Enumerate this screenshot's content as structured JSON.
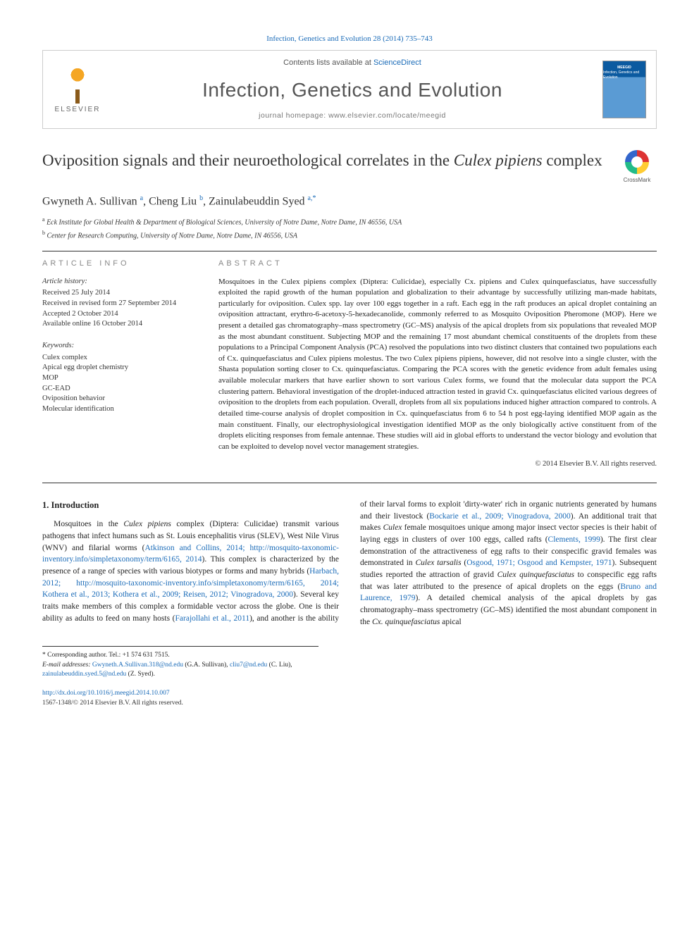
{
  "citation": "Infection, Genetics and Evolution 28 (2014) 735–743",
  "masthead": {
    "contents_prefix": "Contents lists available at ",
    "contents_link": "ScienceDirect",
    "journal": "Infection, Genetics and Evolution",
    "homepage": "journal homepage: www.elsevier.com/locate/meegid",
    "publisher": "ELSEVIER",
    "cover_line1": "MEEGID",
    "cover_line2": "Infection, Genetics and Evolution"
  },
  "title_plain": "Oviposition signals and their neuroethological correlates in the ",
  "title_ital": "Culex pipiens",
  "title_tail": " complex",
  "crossmark_label": "CrossMark",
  "authors_html": "Gwyneth A. Sullivan",
  "author1_sup": "a",
  "author2": "Cheng Liu",
  "author2_sup": "b",
  "author3": "Zainulabeuddin Syed",
  "author3_sup": "a,*",
  "affiliations": {
    "a": "Eck Institute for Global Health & Department of Biological Sciences, University of Notre Dame, Notre Dame, IN 46556, USA",
    "b": "Center for Research Computing, University of Notre Dame, Notre Dame, IN 46556, USA"
  },
  "section_labels": {
    "info": "ARTICLE INFO",
    "abstract": "ABSTRACT"
  },
  "history_head": "Article history:",
  "history": [
    "Received 25 July 2014",
    "Received in revised form 27 September 2014",
    "Accepted 2 October 2014",
    "Available online 16 October 2014"
  ],
  "keywords_head": "Keywords:",
  "keywords": [
    "Culex complex",
    "Apical egg droplet chemistry",
    "MOP",
    "GC-EAD",
    "Oviposition behavior",
    "Molecular identification"
  ],
  "abstract": "Mosquitoes in the Culex pipiens complex (Diptera: Culicidae), especially Cx. pipiens and Culex quinquefasciatus, have successfully exploited the rapid growth of the human population and globalization to their advantage by successfully utilizing man-made habitats, particularly for oviposition. Culex spp. lay over 100 eggs together in a raft. Each egg in the raft produces an apical droplet containing an oviposition attractant, erythro-6-acetoxy-5-hexadecanolide, commonly referred to as Mosquito Oviposition Pheromone (MOP). Here we present a detailed gas chromatography–mass spectrometry (GC–MS) analysis of the apical droplets from six populations that revealed MOP as the most abundant constituent. Subjecting MOP and the remaining 17 most abundant chemical constituents of the droplets from these populations to a Principal Component Analysis (PCA) resolved the populations into two distinct clusters that contained two populations each of Cx. quinquefasciatus and Culex pipiens molestus. The two Culex pipiens pipiens, however, did not resolve into a single cluster, with the Shasta population sorting closer to Cx. quinquefasciatus. Comparing the PCA scores with the genetic evidence from adult females using available molecular markers that have earlier shown to sort various Culex forms, we found that the molecular data support the PCA clustering pattern. Behavioral investigation of the droplet-induced attraction tested in gravid Cx. quinquefasciatus elicited various degrees of oviposition to the droplets from each population. Overall, droplets from all six populations induced higher attraction compared to controls. A detailed time-course analysis of droplet composition in Cx. quinquefasciatus from 6 to 54 h post egg-laying identified MOP again as the main constituent. Finally, our electrophysiological investigation identified MOP as the only biologically active constituent from of the droplets eliciting responses from female antennae. These studies will aid in global efforts to understand the vector biology and evolution that can be exploited to develop novel vector management strategies.",
  "copyright": "© 2014 Elsevier B.V. All rights reserved.",
  "intro_head": "1. Introduction",
  "intro_p1a": "Mosquitoes in the ",
  "intro_p1b": "Culex pipiens",
  "intro_p1c": " complex (Diptera: Culicidae) transmit various pathogens that infect humans such as St. Louis encephalitis virus (SLEV), West Nile Virus (WNV) and filarial worms (",
  "intro_ref1": "Atkinson and Collins, 2014; http://mosquito-taxonomic-inventory.info/simpletaxonomy/term/6165, 2014",
  "intro_p1d": "). This complex is characterized by the presence of a range of species with various biotypes or forms and many hybrids (",
  "intro_ref2": "Harbach, 2012; http://mosquito-taxonomic-inventory.info/simpletaxonomy/term/6165, 2014; Kothera et al., 2013; Kothera et al., 2009; Reisen, 2012; Vinogradova, 2000",
  "intro_p1e": "). Several key traits make members of this",
  "intro_p2a": "complex a formidable vector across the globe. One is their ability as adults to feed on many hosts (",
  "intro_ref3": "Farajollahi et al., 2011",
  "intro_p2b": "), and another is the ability of their larval forms to exploit 'dirty-water' rich in organic nutrients generated by humans and their livestock (",
  "intro_ref4": "Bockarie et al., 2009; Vinogradova, 2000",
  "intro_p2c": "). An additional trait that makes ",
  "intro_p2c_ital": "Culex",
  "intro_p2d": " female mosquitoes unique among major insect vector species is their habit of laying eggs in clusters of over 100 eggs, called rafts (",
  "intro_ref5": "Clements, 1999",
  "intro_p2e": "). The first clear demonstration of the attractiveness of egg rafts to their conspecific gravid females was demonstrated in ",
  "intro_p2e_ital": "Culex tarsalis",
  "intro_p2f": " (",
  "intro_ref6": "Osgood, 1971; Osgood and Kempster, 1971",
  "intro_p2g": "). Subsequent studies reported the attraction of gravid ",
  "intro_p2g_ital": "Culex quinquefasciatus",
  "intro_p2h": " to conspecific egg rafts that was later attributed to the presence of apical droplets on the eggs (",
  "intro_ref7": "Bruno and Laurence, 1979",
  "intro_p2i": "). A detailed chemical analysis of the apical droplets by gas chromatography–mass spectrometry (GC–MS) identified the most abundant component in the ",
  "intro_p2i_ital": "Cx. quinquefasciatus",
  "intro_p2j": " apical",
  "footnote": {
    "corr": "* Corresponding author. Tel.: +1 574 631 7515.",
    "email_label": "E-mail addresses: ",
    "e1": "Gwyneth.A.Sullivan.318@nd.edu",
    "e1_who": " (G.A. Sullivan), ",
    "e2": "cliu7@nd.edu",
    "e2_who": " (C. Liu), ",
    "e3": "zainulabeuddin.syed.5@nd.edu",
    "e3_who": " (Z. Syed)."
  },
  "footer": {
    "doi": "http://dx.doi.org/10.1016/j.meegid.2014.10.007",
    "issn_line": "1567-1348/© 2014 Elsevier B.V. All rights reserved."
  }
}
